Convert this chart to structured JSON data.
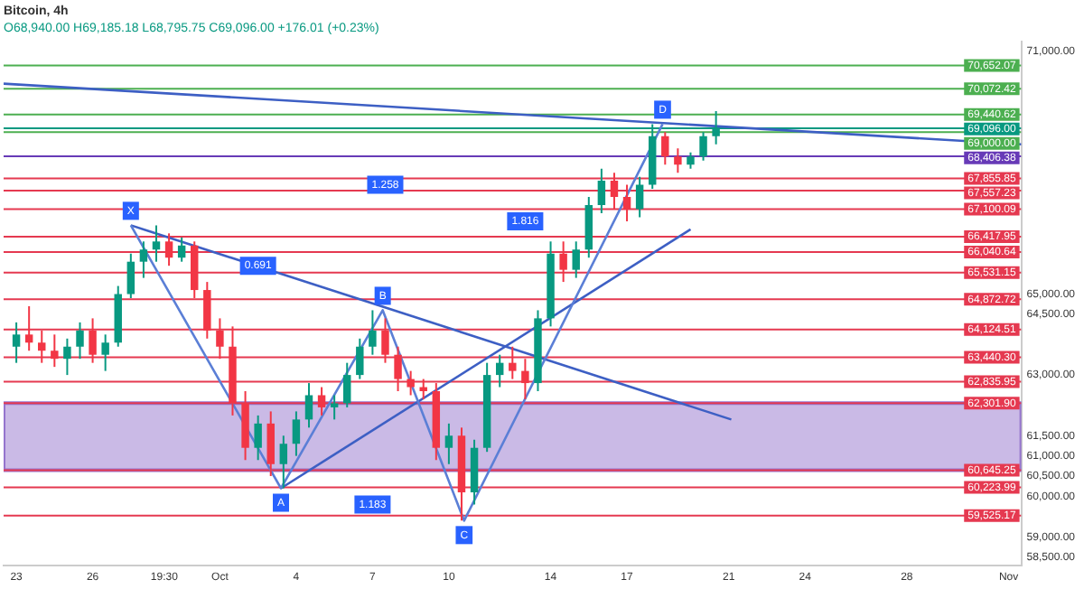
{
  "chart_data": {
    "type": "candlestick",
    "title": "Bitcoin, 4h",
    "subtitle": "O68,940.00 H69,185.18 L68,795.75 C69,096.00 +176.01 (+0.23%)",
    "x": [
      "--09-23T00:00",
      "--09-23T12:00",
      "--09-24T00:00",
      "--09-24T12:00",
      "--09-25T00:00",
      "--09-25T12:00",
      "--09-26T00:00",
      "--09-26T12:00",
      "--09-27T00:00",
      "--09-27T12:00",
      "--09-28T00:00",
      "--09-28T12:00",
      "--09-29T00:00",
      "--09-29T12:00",
      "--09-30T00:00",
      "--09-30T12:00",
      "--10-01T00:00",
      "--10-01T12:00",
      "--10-02T00:00",
      "--10-02T12:00",
      "--10-03T00:00",
      "--10-03T12:00",
      "--10-04T00:00",
      "--10-04T12:00",
      "--10-05T00:00",
      "--10-05T12:00",
      "--10-06T00:00",
      "--10-06T12:00",
      "--10-07T00:00",
      "--10-07T12:00",
      "--10-08T00:00",
      "--10-08T12:00",
      "--10-09T00:00",
      "--10-09T12:00",
      "--10-10T00:00",
      "--10-10T12:00",
      "--10-11T00:00",
      "--10-11T12:00",
      "--10-12T00:00",
      "--10-12T12:00",
      "--10-13T00:00",
      "--10-13T12:00",
      "--10-14T00:00",
      "--10-14T12:00",
      "--10-15T00:00",
      "--10-15T12:00",
      "--10-16T00:00",
      "--10-16T12:00",
      "--10-17T00:00",
      "--10-17T12:00",
      "--10-18T00:00",
      "--10-18T12:00",
      "--10-19T00:00",
      "--10-19T12:00",
      "--10-20T00:00",
      "--10-20T12:00"
    ],
    "ohlc": [
      [
        63700,
        64300,
        63300,
        64000
      ],
      [
        64000,
        64700,
        63600,
        63800
      ],
      [
        63800,
        64100,
        63300,
        63600
      ],
      [
        63600,
        64000,
        63200,
        63400
      ],
      [
        63400,
        63900,
        63000,
        63700
      ],
      [
        63700,
        64300,
        63400,
        64100
      ],
      [
        64100,
        64400,
        63300,
        63500
      ],
      [
        63500,
        64000,
        63100,
        63800
      ],
      [
        63800,
        65200,
        63700,
        65000
      ],
      [
        65000,
        66000,
        64900,
        65800
      ],
      [
        65800,
        66300,
        65400,
        66100
      ],
      [
        66100,
        66700,
        65800,
        66300
      ],
      [
        66300,
        66500,
        65700,
        65900
      ],
      [
        65900,
        66400,
        65800,
        66200
      ],
      [
        66200,
        66300,
        64900,
        65100
      ],
      [
        65100,
        65300,
        63900,
        64100
      ],
      [
        64100,
        64400,
        63400,
        63700
      ],
      [
        63700,
        64200,
        62000,
        62300
      ],
      [
        62300,
        62600,
        60900,
        61200
      ],
      [
        61200,
        62000,
        60900,
        61800
      ],
      [
        61800,
        62100,
        60500,
        60800
      ],
      [
        60800,
        61500,
        60200,
        61300
      ],
      [
        61300,
        62100,
        61000,
        61900
      ],
      [
        61900,
        62800,
        61700,
        62500
      ],
      [
        62500,
        62700,
        62000,
        62200
      ],
      [
        62200,
        62500,
        61900,
        62300
      ],
      [
        62300,
        63300,
        62200,
        63000
      ],
      [
        63000,
        63900,
        62900,
        63700
      ],
      [
        63700,
        64600,
        63500,
        64100
      ],
      [
        64100,
        64400,
        63300,
        63500
      ],
      [
        63500,
        63700,
        62600,
        62900
      ],
      [
        62900,
        63100,
        62500,
        62700
      ],
      [
        62700,
        62900,
        62400,
        62600
      ],
      [
        62600,
        62800,
        60900,
        61200
      ],
      [
        61200,
        61800,
        60800,
        61500
      ],
      [
        61500,
        61700,
        59400,
        60100
      ],
      [
        60100,
        61400,
        59800,
        61200
      ],
      [
        61200,
        63300,
        61100,
        63000
      ],
      [
        63000,
        63500,
        62700,
        63300
      ],
      [
        63300,
        63700,
        62900,
        63100
      ],
      [
        63100,
        63400,
        62400,
        62800
      ],
      [
        62800,
        64600,
        62600,
        64400
      ],
      [
        64400,
        66300,
        64200,
        66000
      ],
      [
        66000,
        66300,
        65300,
        65600
      ],
      [
        65600,
        66300,
        65400,
        66100
      ],
      [
        66100,
        67400,
        65900,
        67200
      ],
      [
        67200,
        68100,
        67000,
        67800
      ],
      [
        67800,
        68000,
        67100,
        67400
      ],
      [
        67400,
        67700,
        66800,
        67100
      ],
      [
        67100,
        67900,
        66900,
        67700
      ],
      [
        67700,
        69200,
        67600,
        68900
      ],
      [
        68900,
        69000,
        68200,
        68400
      ],
      [
        68400,
        68600,
        68000,
        68200
      ],
      [
        68200,
        68500,
        68100,
        68400
      ],
      [
        68400,
        69000,
        68300,
        68900
      ],
      [
        68900,
        69520,
        68700,
        69096
      ]
    ],
    "series": [
      {
        "type": "line",
        "color": "#5b7fd6",
        "marker": "none",
        "x": [
          "--09-27T12:00",
          "--10-03T09:36",
          "--10-07T09:36",
          "--10-10T14:24",
          "--10-18T09:36"
        ],
        "values": [
          66700,
          60200,
          64600,
          59400,
          69200
        ]
      },
      {
        "type": "line",
        "color": "#3d5fc4",
        "x": [
          "--09-22T12:00",
          "--11-01T12:00"
        ],
        "values": [
          70200,
          68700
        ]
      },
      {
        "type": "line",
        "color": "#3d5fc4",
        "x": [
          "--09-27T12:00",
          "--10-21T02:24"
        ],
        "values": [
          66700,
          61900
        ]
      },
      {
        "type": "line",
        "color": "#3d5fc4",
        "x": [
          "--10-03T09:36",
          "--10-19T12:00"
        ],
        "values": [
          60200,
          66600
        ]
      }
    ],
    "xlim": [
      "--09-22T12:00",
      "--11-01T12:00"
    ],
    "xticks": [
      {
        "value": "--09-23",
        "label": "23"
      },
      {
        "value": "--09-26",
        "label": "26"
      },
      {
        "value": "--09-28T19:30",
        "label": "19:30"
      },
      {
        "value": "--10-01",
        "label": "Oct"
      },
      {
        "value": "--10-04",
        "label": "4"
      },
      {
        "value": "--10-07",
        "label": "7"
      },
      {
        "value": "--10-10",
        "label": "10"
      },
      {
        "value": "--10-14",
        "label": "14"
      },
      {
        "value": "--10-17",
        "label": "17"
      },
      {
        "value": "--10-21",
        "label": "21"
      },
      {
        "value": "--10-24",
        "label": "24"
      },
      {
        "value": "--10-28",
        "label": "28"
      },
      {
        "value": "--11-01",
        "label": "Nov"
      }
    ],
    "ylim": [
      58300,
      71250
    ],
    "yticks": [
      {
        "value": 58500,
        "label": "58,500.00"
      },
      {
        "value": 59000,
        "label": "59,000.00"
      },
      {
        "value": 60000,
        "label": "60,000.00"
      },
      {
        "value": 60500,
        "label": "60,500.00"
      },
      {
        "value": 61000,
        "label": "61,000.00"
      },
      {
        "value": 61500,
        "label": "61,500.00"
      },
      {
        "value": 63000,
        "label": "63,000.00"
      },
      {
        "value": 64500,
        "label": "64,500.00"
      },
      {
        "value": 65000,
        "label": "65,000.00"
      },
      {
        "value": 71000,
        "label": "71,000.00"
      }
    ],
    "ref_lines": [
      {
        "axis": "y",
        "value": 70652.07,
        "label": "70,652.07",
        "color": "#4caf50"
      },
      {
        "axis": "y",
        "value": 70072.42,
        "label": "70,072.42",
        "color": "#4caf50"
      },
      {
        "axis": "y",
        "value": 69440.62,
        "label": "69,440.62",
        "color": "#4caf50"
      },
      {
        "axis": "y",
        "value": 69096,
        "label": "69,096.00",
        "color": "#089981"
      },
      {
        "axis": "y",
        "value": 69000,
        "label": "69,000.00",
        "color": "#4caf50"
      },
      {
        "axis": "y",
        "value": 68406.38,
        "label": "68,406.38",
        "color": "#673ab7"
      },
      {
        "axis": "y",
        "value": 67855.85,
        "label": "67,855.85",
        "color": "#e53950"
      },
      {
        "axis": "y",
        "value": 67557.23,
        "label": "67,557.23",
        "color": "#e53950"
      },
      {
        "axis": "y",
        "value": 67100.09,
        "label": "67,100.09",
        "color": "#e53950"
      },
      {
        "axis": "y",
        "value": 66417.95,
        "label": "66,417.95",
        "color": "#e53950"
      },
      {
        "axis": "y",
        "value": 66040.64,
        "label": "66,040.64",
        "color": "#e53950"
      },
      {
        "axis": "y",
        "value": 65531.15,
        "label": "65,531.15",
        "color": "#e53950"
      },
      {
        "axis": "y",
        "value": 64872.72,
        "label": "64,872.72",
        "color": "#e53950"
      },
      {
        "axis": "y",
        "value": 64124.51,
        "label": "64,124.51",
        "color": "#e53950"
      },
      {
        "axis": "y",
        "value": 63440.3,
        "label": "63,440.30",
        "color": "#e53950"
      },
      {
        "axis": "y",
        "value": 62835.95,
        "label": "62,835.95",
        "color": "#e53950"
      },
      {
        "axis": "y",
        "value": 62301.9,
        "label": "62,301.90",
        "color": "#e53950"
      },
      {
        "axis": "y",
        "value": 60645.25,
        "label": "60,645.25",
        "color": "#e53950"
      },
      {
        "axis": "y",
        "value": 60223.99,
        "label": "60,223.99",
        "color": "#e53950"
      },
      {
        "axis": "y",
        "value": 59525.17,
        "label": "59,525.17",
        "color": "#e53950"
      }
    ],
    "bands": [
      {
        "axis": "y",
        "from": 60645.25,
        "to": 62301.9,
        "color": "#9575cd"
      }
    ],
    "annotations": [
      {
        "text": "X",
        "x": "--09-27T12:00",
        "y": 66700
      },
      {
        "text": "A",
        "x": "--10-03T09:36",
        "y": 60200
      },
      {
        "text": "B",
        "x": "--10-07T09:36",
        "y": 64600
      },
      {
        "text": "C",
        "x": "--10-10T14:24",
        "y": 59400
      },
      {
        "text": "D",
        "x": "--10-18T09:36",
        "y": 69200
      },
      {
        "text": "0.691",
        "x": "--10-02T12:00",
        "y": 65700
      },
      {
        "text": "1.183",
        "x": "--10-07T00:00",
        "y": 59800
      },
      {
        "text": "1.816",
        "x": "--10-13T00:00",
        "y": 66800
      },
      {
        "text": "1.258",
        "x": "--10-07T12:00",
        "y": 67700
      }
    ],
    "grid": false,
    "legend": false
  }
}
